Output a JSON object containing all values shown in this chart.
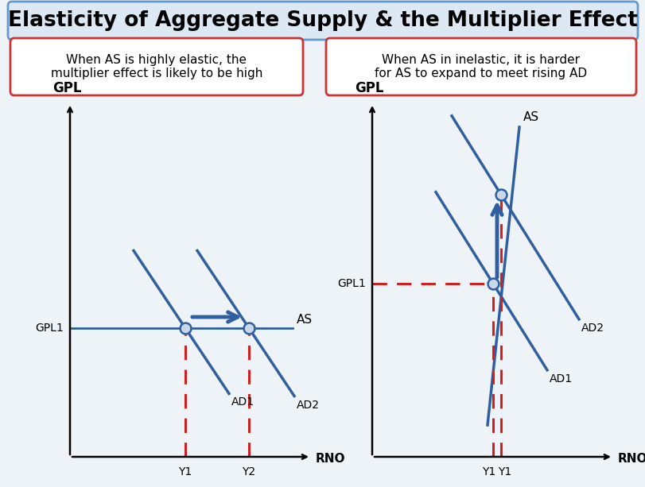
{
  "title": "Elasticity of Aggregate Supply & the Multiplier Effect",
  "title_fontsize": 19,
  "title_bg": "#dce9f5",
  "title_border": "#6699cc",
  "box1_text": "When AS is highly elastic, the\nmultiplier effect is likely to be high",
  "box2_text": "When AS in inelastic, it is harder\nfor AS to expand to meet rising AD",
  "box_bg": "#ffffff",
  "box_border": "#cc3333",
  "line_color": "#2f5f9e",
  "dashed_color": "#cc2222",
  "dot_color": "#c8d8e8",
  "bg_color": "#eef3f8",
  "left_gpl_label": "GPL",
  "left_gpl1_label": "GPL1",
  "left_y1_label": "Y1",
  "left_y2_label": "Y2",
  "left_rno_label": "RNO",
  "left_as_label": "AS",
  "left_ad1_label": "AD1",
  "left_ad2_label": "AD2",
  "right_gpl_label": "GPL",
  "right_gpl1_label": "GPL1",
  "right_y1a_label": "Y1",
  "right_y1b_label": "Y1",
  "right_rno_label": "RNO",
  "right_as_label": "AS",
  "right_ad1_label": "AD1",
  "right_ad2_label": "AD2"
}
